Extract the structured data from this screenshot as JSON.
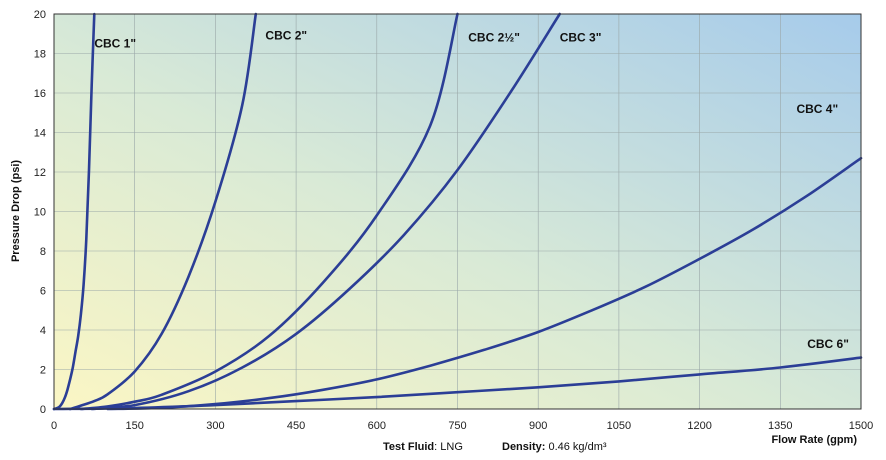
{
  "chart_data": {
    "type": "line",
    "title": "",
    "xlabel": "Flow Rate (gpm)",
    "ylabel": "Pressure Drop (psi)",
    "xlim": [
      0,
      1500
    ],
    "ylim": [
      0,
      20
    ],
    "xticks": [
      0,
      150,
      300,
      450,
      600,
      750,
      900,
      1050,
      1200,
      1350,
      1500
    ],
    "yticks": [
      0,
      2,
      4,
      6,
      8,
      10,
      12,
      14,
      16,
      18,
      20
    ],
    "grid": true,
    "background": "gradient: pale yellow (lower-left) to light blue (upper-right)",
    "line_color": "#2b3e96",
    "series": [
      {
        "name": "CBC 1\"",
        "x": [
          0,
          5,
          10,
          15,
          20,
          25,
          30,
          35,
          40,
          45,
          50,
          55,
          60,
          65,
          70,
          75
        ],
        "y": [
          0,
          0.04,
          0.11,
          0.29,
          0.57,
          0.98,
          1.5,
          2.1,
          2.9,
          3.7,
          4.8,
          6.3,
          8.6,
          12.1,
          16.4,
          20
        ]
      },
      {
        "name": "CBC 2\"",
        "x": [
          30,
          50,
          75,
          100,
          150,
          200,
          250,
          300,
          350,
          375
        ],
        "y": [
          0,
          0.17,
          0.4,
          0.75,
          1.9,
          3.8,
          6.7,
          10.5,
          15.4,
          20
        ]
      },
      {
        "name": "CBC 2½\"",
        "x": [
          50,
          100,
          150,
          200,
          300,
          400,
          500,
          600,
          700,
          750
        ],
        "y": [
          0,
          0.13,
          0.37,
          0.72,
          1.9,
          3.7,
          6.4,
          9.8,
          14.4,
          20
        ]
      },
      {
        "name": "CBC 3\"",
        "x": [
          70,
          150,
          250,
          350,
          450,
          550,
          650,
          750,
          850,
          940
        ],
        "y": [
          0,
          0.2,
          0.9,
          2.1,
          3.8,
          6.1,
          8.8,
          12.1,
          16.1,
          20
        ]
      },
      {
        "name": "CBC 4\"",
        "x": [
          100,
          200,
          300,
          400,
          500,
          600,
          700,
          800,
          900,
          1000,
          1100,
          1200,
          1300,
          1400,
          1500
        ],
        "y": [
          0,
          0.06,
          0.25,
          0.55,
          0.97,
          1.5,
          2.2,
          3.0,
          3.9,
          5.0,
          6.2,
          7.6,
          9.1,
          10.8,
          12.7
        ]
      },
      {
        "name": "CBC 6\"",
        "x": [
          0,
          150,
          300,
          450,
          600,
          750,
          900,
          1050,
          1200,
          1350,
          1500
        ],
        "y": [
          0,
          0.05,
          0.2,
          0.4,
          0.6,
          0.85,
          1.1,
          1.4,
          1.75,
          2.1,
          2.6
        ]
      }
    ],
    "labels": [
      {
        "text": "CBC 1\"",
        "x": 75,
        "y": 18.3
      },
      {
        "text": "CBC 2\"",
        "x": 393,
        "y": 18.7
      },
      {
        "text": "CBC 2½\"",
        "x": 770,
        "y": 18.6
      },
      {
        "text": "CBC 3\"",
        "x": 940,
        "y": 18.6
      },
      {
        "text": "CBC 4\"",
        "x": 1380,
        "y": 15.0
      },
      {
        "text": "CBC 6\"",
        "x": 1400,
        "y": 3.1
      }
    ]
  },
  "footer": {
    "fluid_label": "Test Fluid",
    "fluid_value": ": LNG",
    "density_label": "Density:",
    "density_value": " 0.46 kg/dm³"
  }
}
